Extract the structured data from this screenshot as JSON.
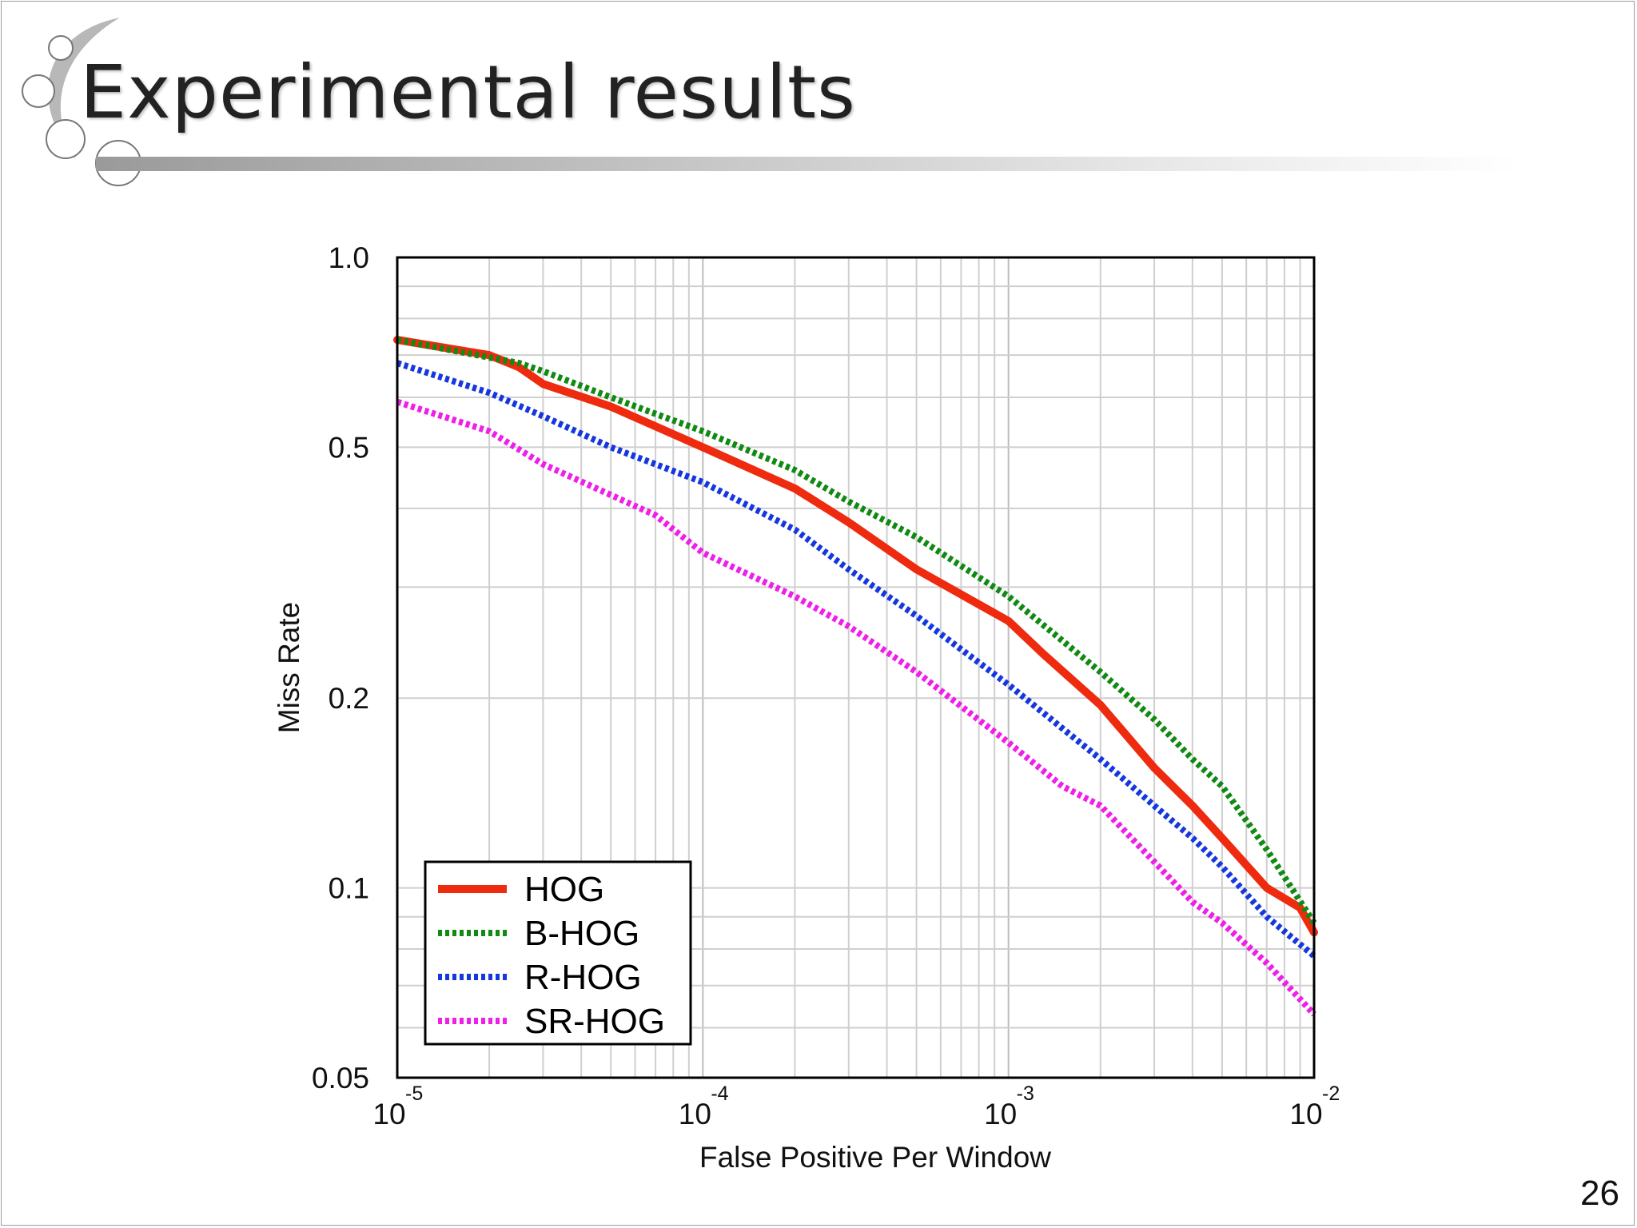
{
  "slide": {
    "title": "Experimental results",
    "page_number": "26"
  },
  "colors": {
    "HOG": "#ee2a0f",
    "B-HOG": "#118a13",
    "R-HOG": "#1537e0",
    "SR-HOG": "#ef1fe8"
  },
  "chart_data": {
    "type": "line",
    "xscale": "log",
    "yscale": "log",
    "xlabel": "False Positive Per Window",
    "ylabel": "Miss Rate",
    "xlim": [
      1e-05,
      0.01
    ],
    "ylim": [
      0.05,
      1.0
    ],
    "x_ticks": [
      {
        "value": 1e-05,
        "base": "10",
        "exp": "-5"
      },
      {
        "value": 0.0001,
        "base": "10",
        "exp": "-4"
      },
      {
        "value": 0.001,
        "base": "10",
        "exp": "-3"
      },
      {
        "value": 0.01,
        "base": "10",
        "exp": "-2"
      }
    ],
    "y_ticks": [
      {
        "value": 1.0,
        "label": "1.0"
      },
      {
        "value": 0.5,
        "label": "0.5"
      },
      {
        "value": 0.2,
        "label": "0.2"
      },
      {
        "value": 0.1,
        "label": "0.1"
      },
      {
        "value": 0.05,
        "label": "0.05"
      }
    ],
    "grid": true,
    "legend_position": "bottom-left",
    "series": [
      {
        "name": "HOG",
        "style": "solid",
        "x": [
          1e-05,
          2e-05,
          2.5e-05,
          3e-05,
          5e-05,
          0.0001,
          0.0002,
          0.0003,
          0.0005,
          0.001,
          0.0013,
          0.002,
          0.003,
          0.004,
          0.005,
          0.007,
          0.009,
          0.01
        ],
        "y": [
          0.74,
          0.7,
          0.67,
          0.63,
          0.58,
          0.5,
          0.43,
          0.38,
          0.32,
          0.265,
          0.235,
          0.195,
          0.155,
          0.135,
          0.12,
          0.1,
          0.093,
          0.085
        ]
      },
      {
        "name": "B-HOG",
        "style": "dotted",
        "x": [
          1e-05,
          2.5e-05,
          3e-05,
          5e-05,
          0.0001,
          0.0002,
          0.0003,
          0.0005,
          0.001,
          0.002,
          0.003,
          0.004,
          0.005,
          0.007,
          0.01
        ],
        "y": [
          0.74,
          0.68,
          0.66,
          0.6,
          0.53,
          0.46,
          0.41,
          0.36,
          0.29,
          0.22,
          0.185,
          0.16,
          0.145,
          0.115,
          0.088
        ]
      },
      {
        "name": "R-HOG",
        "style": "dotted",
        "x": [
          1e-05,
          2e-05,
          3e-05,
          5e-05,
          0.0001,
          0.0002,
          0.0003,
          0.0005,
          0.001,
          0.002,
          0.003,
          0.004,
          0.005,
          0.007,
          0.01
        ],
        "y": [
          0.68,
          0.61,
          0.56,
          0.5,
          0.44,
          0.37,
          0.32,
          0.27,
          0.21,
          0.16,
          0.135,
          0.12,
          0.108,
          0.09,
          0.078
        ]
      },
      {
        "name": "SR-HOG",
        "style": "dotted",
        "x": [
          1e-05,
          2e-05,
          3e-05,
          5e-05,
          7e-05,
          0.0001,
          0.0002,
          0.0003,
          0.0005,
          0.001,
          0.0015,
          0.002,
          0.003,
          0.004,
          0.005,
          0.007,
          0.01
        ],
        "y": [
          0.59,
          0.53,
          0.47,
          0.42,
          0.39,
          0.34,
          0.29,
          0.26,
          0.22,
          0.17,
          0.145,
          0.135,
          0.11,
          0.095,
          0.088,
          0.076,
          0.063
        ]
      }
    ]
  }
}
